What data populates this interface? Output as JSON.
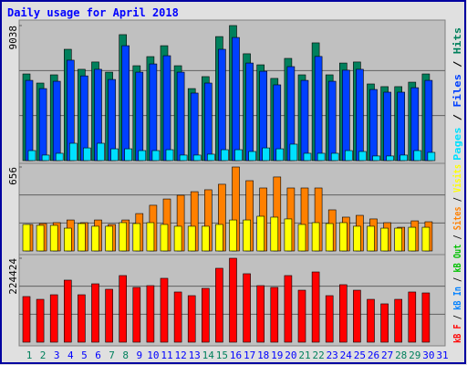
{
  "title": "Daily usage for April 2018",
  "chart_data": [
    {
      "type": "bar",
      "ylim": [
        0,
        9038
      ],
      "yticks": [
        9038
      ],
      "series": [
        {
          "name": "Hits",
          "color": "#00805c",
          "values": [
            5800,
            5190,
            5740,
            7450,
            6110,
            6600,
            5920,
            8430,
            6350,
            6960,
            7690,
            6350,
            4820,
            5620,
            8300,
            9038,
            7150,
            6410,
            5500,
            6840,
            5740,
            7880,
            5740,
            6530,
            6600,
            5130,
            4950,
            4950,
            5250,
            5800,
            null
          ]
        },
        {
          "name": "Files",
          "color": "#0040ff",
          "values": [
            5370,
            4820,
            5310,
            6720,
            5670,
            6110,
            5430,
            7690,
            5920,
            6470,
            7020,
            5920,
            4520,
            5190,
            7450,
            8240,
            6530,
            5980,
            5070,
            6290,
            5370,
            6970,
            5310,
            6050,
            6110,
            4760,
            4580,
            4580,
            4880,
            5370,
            null
          ]
        },
        {
          "name": "Pages",
          "color": "#00e0ff",
          "values": [
            670,
            370,
            490,
            1160,
            850,
            1160,
            790,
            790,
            670,
            670,
            730,
            370,
            370,
            430,
            730,
            730,
            610,
            850,
            790,
            1100,
            490,
            490,
            490,
            670,
            610,
            310,
            310,
            370,
            670,
            550,
            null
          ]
        }
      ]
    },
    {
      "type": "bar",
      "ylim": [
        0,
        656
      ],
      "yticks": [
        656
      ],
      "series": [
        {
          "name": "Sites",
          "color": "#ff8000",
          "values": [
            207,
            214,
            221,
            242,
            221,
            242,
            207,
            242,
            292,
            357,
            406,
            435,
            463,
            478,
            521,
            656,
            549,
            492,
            578,
            492,
            492,
            492,
            321,
            264,
            278,
            250,
            221,
            185,
            235,
            228,
            null
          ]
        },
        {
          "name": "Visits",
          "color": "#ffff00",
          "values": [
            207,
            200,
            200,
            178,
            214,
            193,
            193,
            221,
            214,
            221,
            207,
            193,
            193,
            193,
            207,
            242,
            242,
            271,
            264,
            250,
            207,
            221,
            214,
            221,
            193,
            193,
            178,
            178,
            185,
            185,
            null
          ]
        }
      ]
    },
    {
      "type": "bar",
      "ylim": [
        0,
        224424
      ],
      "yticks": [
        224424
      ],
      "categories": [
        1,
        2,
        3,
        4,
        5,
        6,
        7,
        8,
        9,
        10,
        11,
        12,
        13,
        14,
        15,
        16,
        17,
        18,
        19,
        20,
        21,
        22,
        23,
        24,
        25,
        26,
        27,
        28,
        29,
        30,
        31
      ],
      "category_colors": [
        "#00805c",
        "#00805c",
        "#0000ff",
        "#0000ff",
        "#0000ff",
        "#0000ff",
        "#00805c",
        "#00805c",
        "#0000ff",
        "#0000ff",
        "#0000ff",
        "#0000ff",
        "#0000ff",
        "#00805c",
        "#00805c",
        "#0000ff",
        "#0000ff",
        "#0000ff",
        "#0000ff",
        "#0000ff",
        "#00805c",
        "#00805c",
        "#0000ff",
        "#0000ff",
        "#0000ff",
        "#0000ff",
        "#0000ff",
        "#00805c",
        "#00805c",
        "#0000ff",
        "#0000ff"
      ],
      "series": [
        {
          "name": "kB F",
          "color": "#ff0000",
          "values": [
            122000,
            114600,
            126800,
            165900,
            126800,
            156100,
            141500,
            178100,
            146400,
            151200,
            170800,
            134200,
            124400,
            143900,
            197600,
            224424,
            183000,
            151200,
            146400,
            178100,
            139000,
            187800,
            124400,
            153700,
            139000,
            114600,
            102500,
            114600,
            134200,
            131700,
            null
          ]
        }
      ]
    }
  ],
  "legends": [
    {
      "items": [
        {
          "text": "Pages",
          "color": "#00e0ff"
        },
        {
          "text": " / ",
          "color": "#000000"
        },
        {
          "text": "Files",
          "color": "#0040ff"
        },
        {
          "text": " / ",
          "color": "#000000"
        },
        {
          "text": "Hits",
          "color": "#00805c"
        }
      ]
    },
    {
      "items": [
        {
          "text": "kB F",
          "color": "#ff0000"
        },
        {
          "text": " / ",
          "color": "#000000"
        },
        {
          "text": "kB In",
          "color": "#0080ff"
        },
        {
          "text": " / ",
          "color": "#000000"
        },
        {
          "text": "kB Out",
          "color": "#00c000"
        },
        {
          "text": " / ",
          "color": "#000000"
        },
        {
          "text": "Sites",
          "color": "#ff8000"
        },
        {
          "text": " / ",
          "color": "#000000"
        },
        {
          "text": "Visits",
          "color": "#ffff00"
        }
      ]
    }
  ]
}
